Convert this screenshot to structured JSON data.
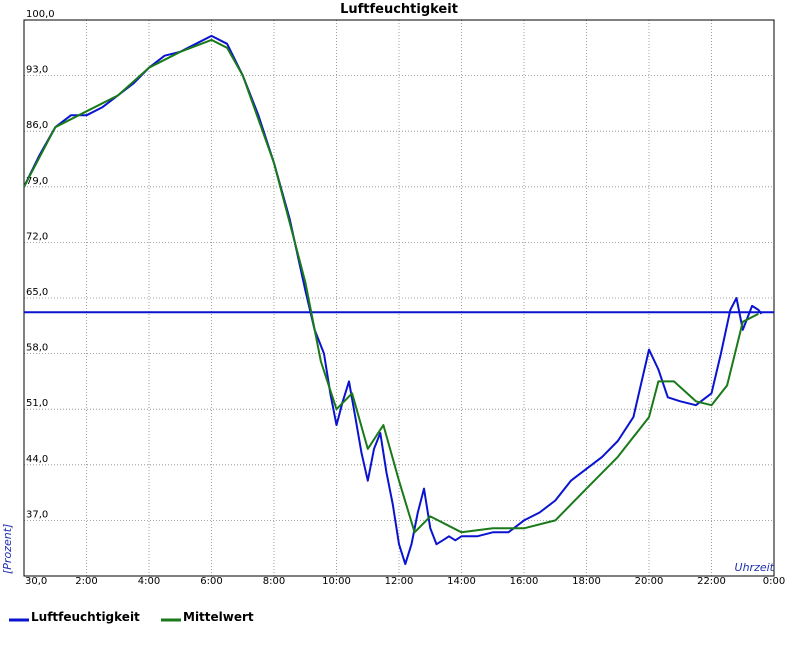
{
  "chart_data": {
    "type": "line",
    "title": "Luftfeuchtigkeit",
    "xlabel": "Uhrzeit",
    "ylabel": "[Prozent]",
    "xlim": [
      0,
      24
    ],
    "ylim": [
      30,
      100
    ],
    "x_tick_labels": [
      "30,0",
      "2:00",
      "4:00",
      "6:00",
      "8:00",
      "10:00",
      "12:00",
      "14:00",
      "16:00",
      "18:00",
      "20:00",
      "22:00",
      "0:00"
    ],
    "y_tick_labels": [
      "100,0",
      "93,0",
      "86,0",
      "79,0",
      "72,0",
      "65,0",
      "58,0",
      "51,0",
      "44,0",
      "37,0"
    ],
    "y_ticks": [
      100,
      93,
      86,
      79,
      72,
      65,
      58,
      51,
      44,
      37
    ],
    "grid": true,
    "legend_position": "bottom",
    "series": [
      {
        "name": "Luftfeuchtigkeit",
        "color": "#0a14d0",
        "x": [
          0,
          0.5,
          1,
          1.5,
          2,
          2.5,
          3,
          3.5,
          4,
          4.5,
          5,
          5.5,
          6,
          6.5,
          7,
          7.5,
          8,
          8.5,
          9,
          9.3,
          9.6,
          9.8,
          10,
          10.2,
          10.4,
          10.6,
          10.8,
          11,
          11.2,
          11.4,
          11.6,
          11.8,
          12,
          12.2,
          12.4,
          12.6,
          12.8,
          13,
          13.2,
          13.4,
          13.6,
          13.8,
          14,
          14.5,
          15,
          15.5,
          16,
          16.5,
          17,
          17.5,
          18,
          18.5,
          19,
          19.5,
          20,
          20.3,
          20.6,
          21,
          21.5,
          22,
          22.3,
          22.6,
          22.8,
          23,
          23.3,
          23.5,
          23.6
        ],
        "y": [
          79,
          83,
          86.5,
          88,
          88,
          89,
          90.5,
          92,
          94,
          95.5,
          96,
          97,
          98,
          97,
          93,
          88,
          82,
          75,
          66,
          61,
          58,
          53,
          49,
          52,
          54.5,
          50,
          45.5,
          42,
          46,
          48,
          43,
          39,
          34,
          31.5,
          34,
          38,
          41,
          36,
          34,
          34.5,
          35,
          34.5,
          35,
          35,
          35.5,
          35.5,
          37,
          38,
          39.5,
          42,
          43.5,
          45,
          47,
          50,
          58.5,
          56,
          52.5,
          52,
          51.5,
          53,
          58,
          63.5,
          65,
          61,
          64,
          63.5,
          63
        ],
        "flat_line_value": 63.2
      },
      {
        "name": "Mittelwert",
        "color": "#1a7a1a",
        "x": [
          0,
          1,
          2,
          3,
          4,
          5,
          6,
          6.5,
          7,
          8,
          9,
          9.5,
          10,
          10.5,
          11,
          11.5,
          12,
          12.5,
          13,
          14,
          15,
          16,
          17,
          18,
          19,
          20,
          20.3,
          20.8,
          21.5,
          22,
          22.5,
          23,
          23.5
        ],
        "y": [
          79,
          86.5,
          88.5,
          90.5,
          94,
          96,
          97.5,
          96.5,
          93,
          82,
          67,
          57,
          51,
          53,
          46,
          49,
          42,
          35.5,
          37.5,
          35.5,
          36,
          36,
          37,
          41,
          45,
          50,
          54.5,
          54.5,
          52,
          51.5,
          54,
          62,
          63
        ]
      }
    ]
  }
}
